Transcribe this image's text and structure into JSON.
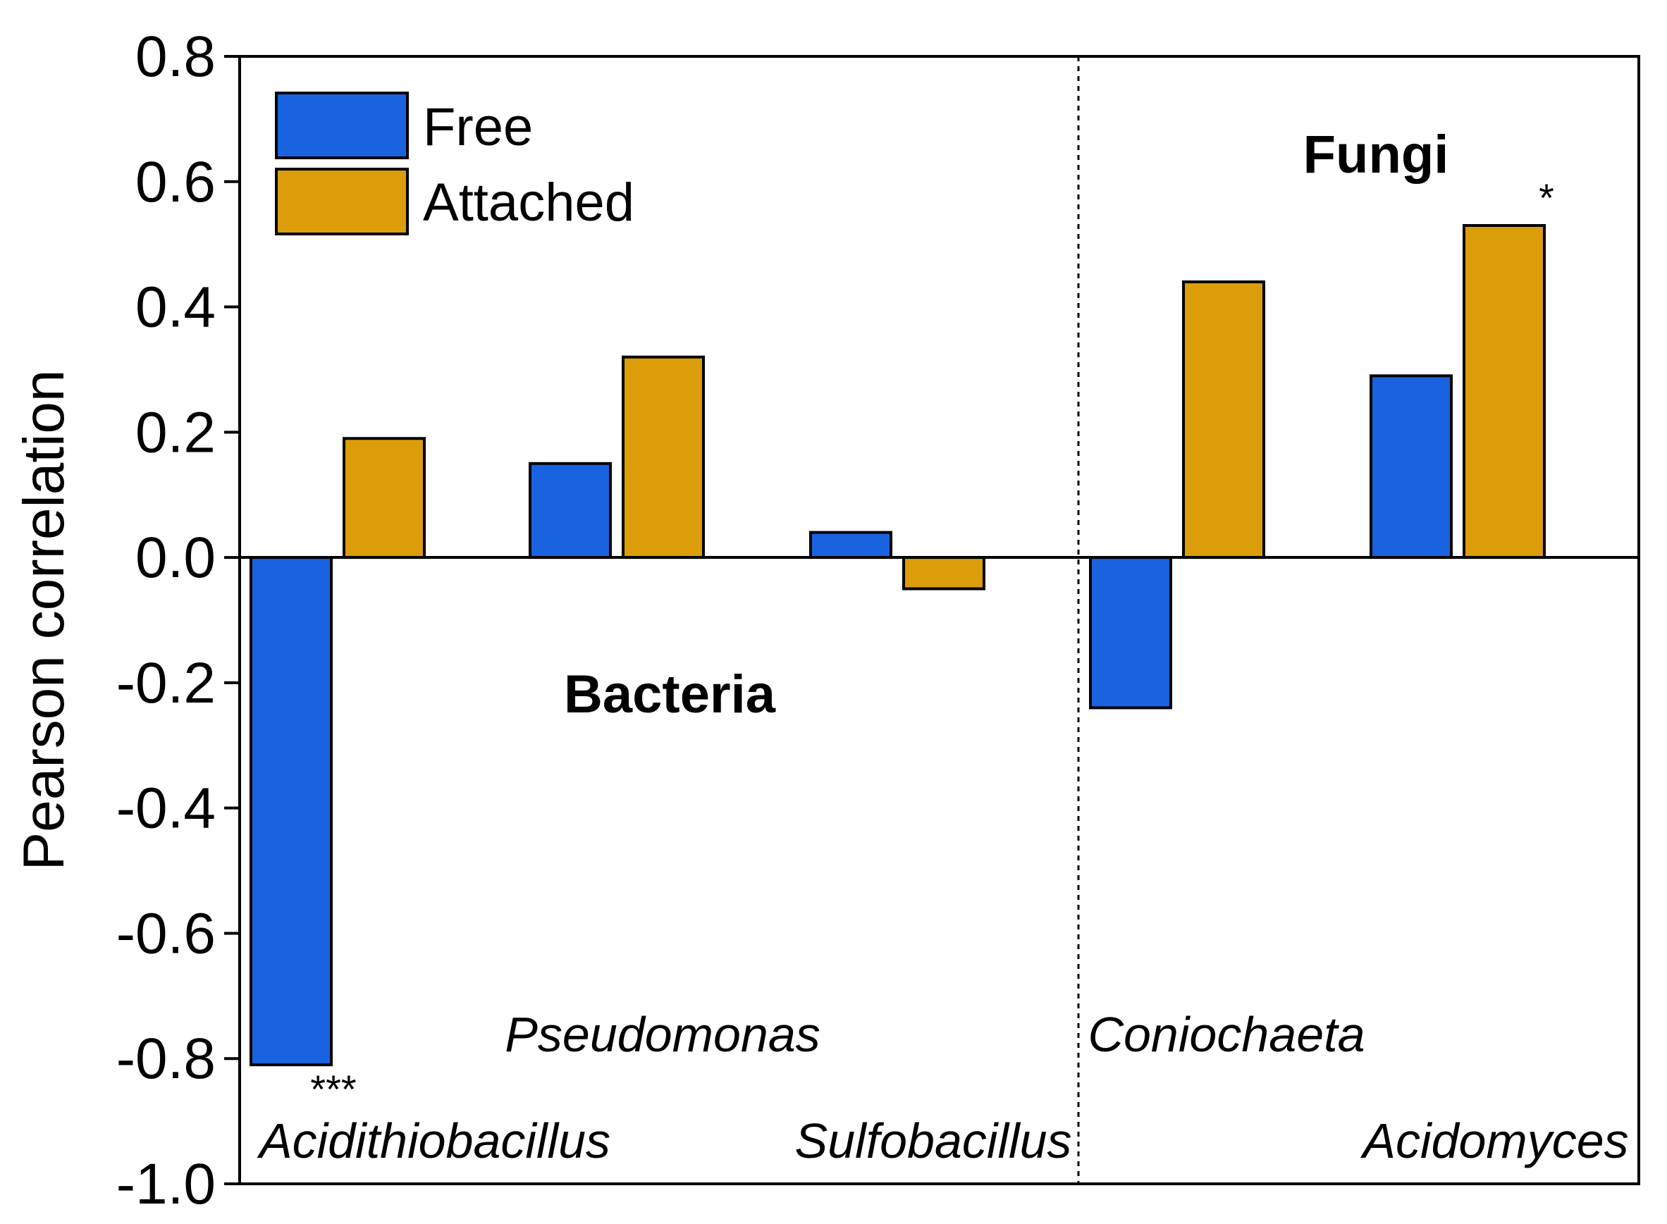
{
  "chart_data": {
    "type": "bar",
    "ylabel": "Pearson correlation",
    "xlabel": "",
    "ylim": [
      -1.0,
      0.8
    ],
    "yticks": [
      "0.8",
      "0.6",
      "0.4",
      "0.2",
      "0.0",
      "-0.2",
      "-0.4",
      "-0.6",
      "-0.8",
      "-1.0"
    ],
    "ytick_values": [
      0.8,
      0.6,
      0.4,
      0.2,
      0.0,
      -0.2,
      -0.4,
      -0.6,
      -0.8,
      -1.0
    ],
    "categories": [
      "Acidithiobacillus",
      "Pseudomonas",
      "Sulfobacillus",
      "Coniochaeta",
      "Acidomyces"
    ],
    "series": [
      {
        "name": "Free",
        "color": "#1a63e0",
        "values": [
          -0.81,
          0.15,
          0.04,
          -0.24,
          0.29
        ]
      },
      {
        "name": "Attached",
        "color": "#db9d0a",
        "values": [
          0.19,
          0.32,
          -0.05,
          0.44,
          0.53
        ]
      }
    ],
    "groups": [
      {
        "label": "Bacteria",
        "categories": [
          "Acidithiobacillus",
          "Pseudomonas",
          "Sulfobacillus"
        ]
      },
      {
        "label": "Fungi",
        "categories": [
          "Coniochaeta",
          "Acidomyces"
        ]
      }
    ],
    "significance": [
      {
        "category": "Acidithiobacillus",
        "series": "Free",
        "mark": "***"
      },
      {
        "category": "Acidomyces",
        "series": "Attached",
        "mark": "*"
      }
    ],
    "legend": {
      "entries": [
        "Free",
        "Attached"
      ],
      "position": "top-left"
    },
    "grid": false
  }
}
